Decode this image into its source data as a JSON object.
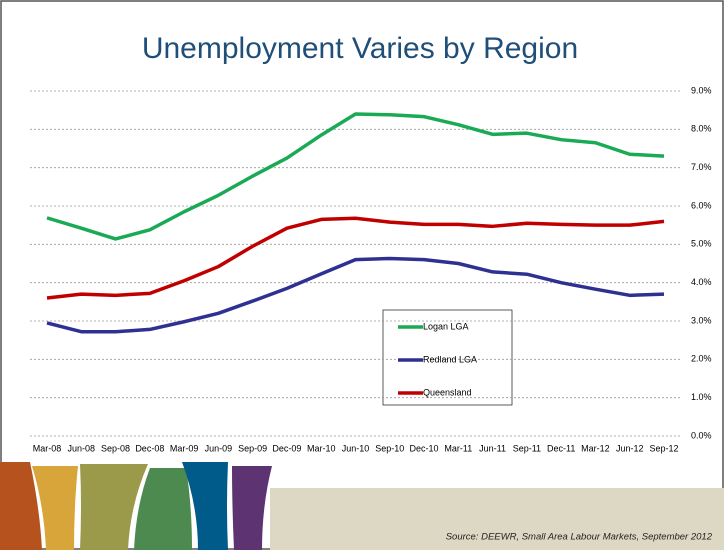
{
  "chart_data": {
    "type": "line",
    "title": "Unemployment Varies by Region",
    "categories": [
      "Mar-08",
      "Jun-08",
      "Sep-08",
      "Dec-08",
      "Mar-09",
      "Jun-09",
      "Sep-09",
      "Dec-09",
      "Mar-10",
      "Jun-10",
      "Sep-10",
      "Dec-10",
      "Mar-11",
      "Jun-11",
      "Sep-11",
      "Dec-11",
      "Mar-12",
      "Jun-12",
      "Sep-12"
    ],
    "series": [
      {
        "name": "Logan LGA",
        "color": "#1aaa55",
        "values": [
          5.69,
          5.42,
          5.14,
          5.38,
          5.85,
          6.28,
          6.78,
          7.25,
          7.85,
          8.4,
          8.38,
          8.33,
          8.12,
          7.87,
          7.9,
          7.73,
          7.65,
          7.35,
          7.3
        ]
      },
      {
        "name": "Redland LGA",
        "color": "#2e3192",
        "values": [
          2.95,
          2.72,
          2.72,
          2.78,
          2.98,
          3.2,
          3.52,
          3.85,
          4.23,
          4.6,
          4.63,
          4.6,
          4.5,
          4.28,
          4.22,
          4.0,
          3.83,
          3.67,
          3.7
        ]
      },
      {
        "name": "Queensland",
        "color": "#c00000",
        "values": [
          3.6,
          3.7,
          3.67,
          3.72,
          4.05,
          4.42,
          4.95,
          5.42,
          5.65,
          5.68,
          5.58,
          5.52,
          5.52,
          5.47,
          5.55,
          5.52,
          5.5,
          5.5,
          5.6
        ]
      }
    ],
    "ylim": [
      0,
      9
    ],
    "yticks": [
      {
        "value": 0,
        "label": "0.0%"
      },
      {
        "value": 1,
        "label": "1.0%"
      },
      {
        "value": 2,
        "label": "2.0%"
      },
      {
        "value": 3,
        "label": "3.0%"
      },
      {
        "value": 4,
        "label": "4.0%"
      },
      {
        "value": 5,
        "label": "5.0%"
      },
      {
        "value": 6,
        "label": "6.0%"
      },
      {
        "value": 7,
        "label": "7.0%"
      },
      {
        "value": 8,
        "label": "8.0%"
      },
      {
        "value": 9,
        "label": "9.0%"
      }
    ],
    "grid": true,
    "source": "Source: DEEWR, Small Area Labour Markets, September 2012"
  }
}
